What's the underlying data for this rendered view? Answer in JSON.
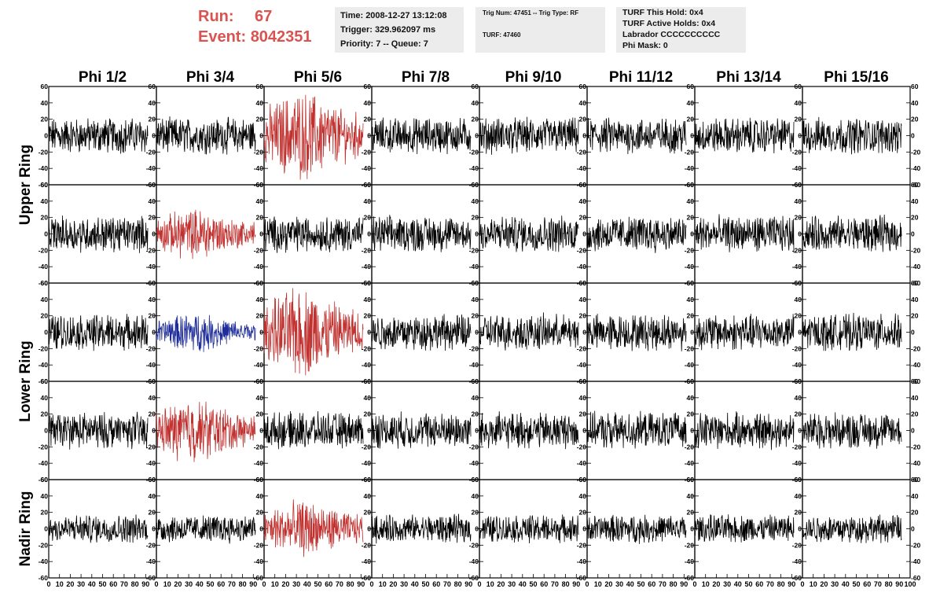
{
  "header": {
    "run_label": "Run:",
    "run_value": "67",
    "event_label": "Event:",
    "event_value": "8042351",
    "time": "Time: 2008-12-27 13:12:08",
    "trigger": "Trigger: 329.962097 ms",
    "priority": "Priority: 7 -- Queue: 7",
    "trig_num": "Trig Num: 47451 -- Trig Type: RF",
    "turf": "TURF: 47460",
    "turf_this_hold": "TURF This Hold: 0x4",
    "turf_active_holds": "TURF Active Holds: 0x4",
    "labrador": "Labrador CCCCCCCCCC",
    "phi_mask": "Phi Mask: 0"
  },
  "chart_data": {
    "type": "line",
    "columns": [
      "Phi 1/2",
      "Phi 3/4",
      "Phi 5/6",
      "Phi 7/8",
      "Phi 9/10",
      "Phi 11/12",
      "Phi 13/14",
      "Phi 15/16"
    ],
    "ring_labels": [
      {
        "label": "Upper Ring",
        "rows": [
          0,
          1
        ]
      },
      {
        "label": "Lower Ring",
        "rows": [
          2,
          3
        ]
      },
      {
        "label": "Nadir Ring",
        "rows": [
          4
        ]
      }
    ],
    "xlim": [
      0,
      100
    ],
    "ylim": [
      -60,
      60
    ],
    "y_ticks": [
      60,
      40,
      20,
      0,
      -20,
      -40,
      -60
    ],
    "x_ticks": [
      0,
      10,
      20,
      30,
      40,
      50,
      60,
      70,
      80,
      90,
      100
    ],
    "colors": {
      "normal": "#000000",
      "triggered": "#c0312f",
      "highlighted": "#1f2d9a"
    },
    "panels": [
      [
        "normal",
        "normal",
        "triggered",
        "normal",
        "normal",
        "normal",
        "normal",
        "normal"
      ],
      [
        "normal",
        "triggered",
        "normal",
        "normal",
        "normal",
        "normal",
        "normal",
        "normal"
      ],
      [
        "normal",
        "highlighted",
        "triggered",
        "normal",
        "normal",
        "normal",
        "normal",
        "normal"
      ],
      [
        "normal",
        "triggered",
        "normal",
        "normal",
        "normal",
        "normal",
        "normal",
        "normal"
      ],
      [
        "normal",
        "normal",
        "triggered",
        "normal",
        "normal",
        "normal",
        "normal",
        "normal"
      ]
    ],
    "amplitude": [
      [
        18,
        18,
        35,
        18,
        18,
        18,
        18,
        18
      ],
      [
        18,
        20,
        18,
        18,
        18,
        18,
        18,
        18
      ],
      [
        18,
        15,
        35,
        18,
        18,
        18,
        18,
        18
      ],
      [
        18,
        25,
        18,
        18,
        18,
        18,
        18,
        18
      ],
      [
        14,
        14,
        22,
        14,
        14,
        14,
        14,
        14
      ]
    ]
  }
}
